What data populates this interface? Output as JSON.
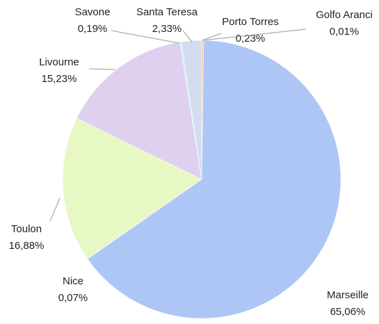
{
  "chart_data": {
    "type": "pie",
    "categories": [
      "Porto Torres",
      "Golfo Aranci",
      "Marseille",
      "Nice",
      "Toulon",
      "Livourne",
      "Savone",
      "Santa Teresa"
    ],
    "values": [
      0.23,
      0.01,
      65.06,
      0.07,
      16.88,
      15.23,
      0.19,
      2.33
    ],
    "value_labels": [
      "0,23%",
      "0,01%",
      "65,06%",
      "0,07%",
      "16,88%",
      "15,23%",
      "0,19%",
      "2,33%"
    ],
    "colors": [
      "#f4c9a8",
      "#f2b8b8",
      "#adc6f6",
      "#c6d8f8",
      "#e8f8c4",
      "#dfd0f0",
      "#cfe8f4",
      "#d3ddee"
    ]
  }
}
